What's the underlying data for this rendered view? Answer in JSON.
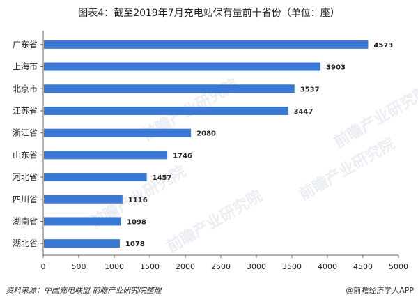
{
  "title": "图表4：截至2019年7月充电站保有量前十省份（单位：座）",
  "source": "资料来源：中国充电联盟 前瞻产业研究院整理",
  "brand": "@前瞻经济学人APP",
  "watermark_text": "前瞻产业研究院",
  "colors": {
    "bar": "#3a78d4",
    "axis": "#666666"
  },
  "chart_data": {
    "type": "bar",
    "orientation": "horizontal",
    "categories": [
      "广东省",
      "上海市",
      "北京市",
      "江苏省",
      "浙江省",
      "山东省",
      "河北省",
      "四川省",
      "湖南省",
      "湖北省"
    ],
    "values": [
      4573,
      3903,
      3537,
      3447,
      2080,
      1746,
      1457,
      1116,
      1098,
      1078
    ],
    "xlim": [
      0,
      5000
    ],
    "xticks": [
      0,
      500,
      1000,
      1500,
      2000,
      2500,
      3000,
      3500,
      4000,
      4500,
      5000
    ],
    "grid": false,
    "legend": "none"
  }
}
